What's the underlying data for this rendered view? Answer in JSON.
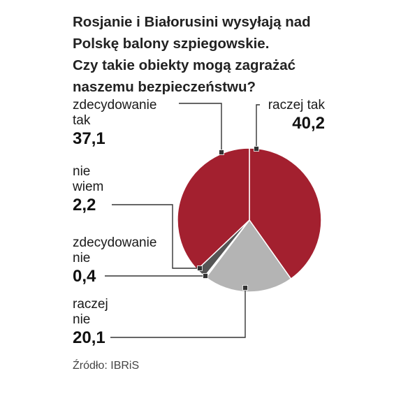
{
  "title_lines": [
    "Rosjanie i Białorusini wysyłają nad",
    "Polskę balony szpiegowskie.",
    "Czy takie obiekty mogą zagrażać",
    "naszemu bezpieczeństwu?"
  ],
  "source": "Źródło: IBRiS",
  "colors": {
    "red": "#a3202f",
    "dark_gray": "#555555",
    "light_gray": "#b4b4b4",
    "leader": "#333333"
  },
  "chart_data": {
    "type": "pie",
    "title": "",
    "slices": [
      {
        "label": "raczej tak",
        "value": "40,2",
        "share": 40.2,
        "color": "#a3202f"
      },
      {
        "label": "raczej nie",
        "value": "20,1",
        "share": 20.1,
        "color": "#b4b4b4"
      },
      {
        "label": "zdecydowanie nie",
        "value": "0,4",
        "share": 0.4,
        "color": "#ffffff"
      },
      {
        "label": "nie wiem",
        "value": "2,2",
        "share": 2.2,
        "color": "#555555"
      },
      {
        "label": "zdecydowanie tak",
        "value": "37,1",
        "share": 37.1,
        "color": "#a3202f"
      }
    ]
  },
  "labels": {
    "raczej_tak": {
      "lines": [
        "raczej tak"
      ],
      "value": "40,2"
    },
    "zdecydowanie_tak": {
      "lines": [
        "zdecydowanie",
        "tak"
      ],
      "value": "37,1"
    },
    "nie_wiem": {
      "lines": [
        "nie",
        "wiem"
      ],
      "value": "2,2"
    },
    "zdecydowanie_nie": {
      "lines": [
        "zdecydowanie",
        "nie"
      ],
      "value": "0,4"
    },
    "raczej_nie": {
      "lines": [
        "raczej",
        "nie"
      ],
      "value": "20,1"
    }
  }
}
